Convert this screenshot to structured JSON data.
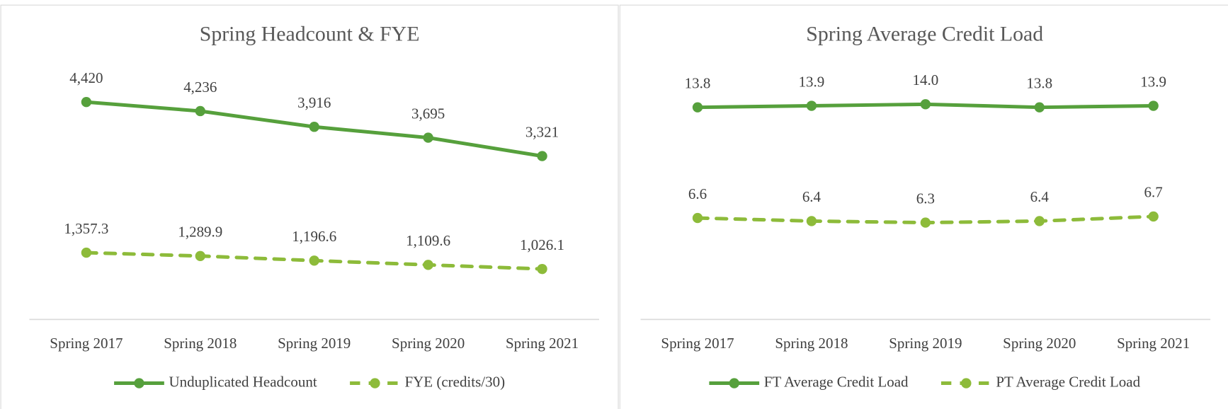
{
  "chart_data": [
    {
      "type": "line",
      "title": "Spring Headcount & FYE",
      "categories": [
        "Spring 2017",
        "Spring 2018",
        "Spring 2019",
        "Spring 2020",
        "Spring 2021"
      ],
      "ylim": [
        0,
        5000
      ],
      "series": [
        {
          "name": "Unduplicated Headcount",
          "color": "#56a03c",
          "dashed": false,
          "values": [
            4420,
            4236,
            3916,
            3695,
            3321
          ],
          "value_labels": [
            "4,420",
            "4,236",
            "3,916",
            "3,695",
            "3,321"
          ]
        },
        {
          "name": "FYE (credits/30)",
          "color": "#8dbb3a",
          "dashed": true,
          "values": [
            1357.3,
            1289.9,
            1196.6,
            1109.6,
            1026.1
          ],
          "value_labels": [
            "1,357.3",
            "1,289.9",
            "1,196.6",
            "1,109.6",
            "1,026.1"
          ]
        }
      ]
    },
    {
      "type": "line",
      "title": "Spring Average Credit Load",
      "categories": [
        "Spring 2017",
        "Spring 2018",
        "Spring 2019",
        "Spring 2020",
        "Spring 2021"
      ],
      "ylim": [
        0,
        16
      ],
      "series": [
        {
          "name": "FT Average Credit Load",
          "color": "#56a03c",
          "dashed": false,
          "values": [
            13.8,
            13.9,
            14.0,
            13.8,
            13.9
          ],
          "value_labels": [
            "13.8",
            "13.9",
            "14.0",
            "13.8",
            "13.9"
          ]
        },
        {
          "name": "PT Average Credit Load",
          "color": "#8dbb3a",
          "dashed": true,
          "values": [
            6.6,
            6.4,
            6.3,
            6.4,
            6.7
          ],
          "value_labels": [
            "6.6",
            "6.4",
            "6.3",
            "6.4",
            "6.7"
          ]
        }
      ]
    }
  ]
}
